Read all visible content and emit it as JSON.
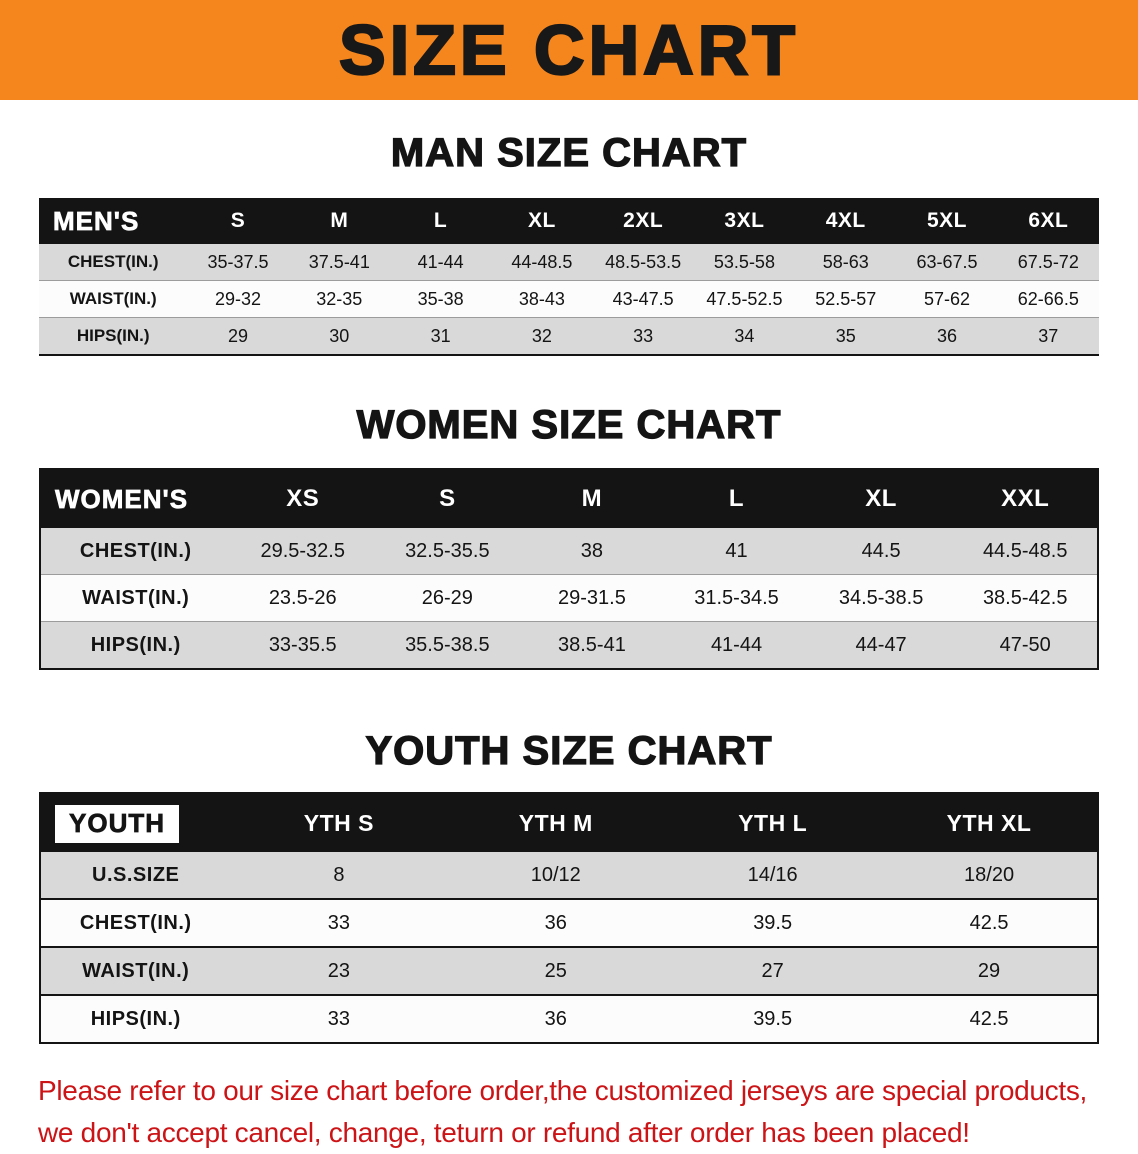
{
  "banner": {
    "title": "SIZE CHART"
  },
  "sections": [
    {
      "id": "men",
      "heading": "MAN SIZE CHART",
      "corner": "MEN'S",
      "sizes": [
        "S",
        "M",
        "L",
        "XL",
        "2XL",
        "3XL",
        "4XL",
        "5XL",
        "6XL"
      ],
      "rows": [
        {
          "label": "CHEST(IN.)",
          "values": [
            "35-37.5",
            "37.5-41",
            "41-44",
            "44-48.5",
            "48.5-53.5",
            "53.5-58",
            "58-63",
            "63-67.5",
            "67.5-72"
          ]
        },
        {
          "label": "WAIST(IN.)",
          "values": [
            "29-32",
            "32-35",
            "35-38",
            "38-43",
            "43-47.5",
            "47.5-52.5",
            "52.5-57",
            "57-62",
            "62-66.5"
          ]
        },
        {
          "label": "HIPS(IN.)",
          "values": [
            "29",
            "30",
            "31",
            "32",
            "33",
            "34",
            "35",
            "36",
            "37"
          ]
        }
      ]
    },
    {
      "id": "women",
      "heading": "WOMEN SIZE CHART",
      "corner": "WOMEN'S",
      "sizes": [
        "XS",
        "S",
        "M",
        "L",
        "XL",
        "XXL"
      ],
      "rows": [
        {
          "label": "CHEST(IN.)",
          "values": [
            "29.5-32.5",
            "32.5-35.5",
            "38",
            "41",
            "44.5",
            "44.5-48.5"
          ]
        },
        {
          "label": "WAIST(IN.)",
          "values": [
            "23.5-26",
            "26-29",
            "29-31.5",
            "31.5-34.5",
            "34.5-38.5",
            "38.5-42.5"
          ]
        },
        {
          "label": "HIPS(IN.)",
          "values": [
            "33-35.5",
            "35.5-38.5",
            "38.5-41",
            "41-44",
            "44-47",
            "47-50"
          ]
        }
      ]
    },
    {
      "id": "youth",
      "heading": "YOUTH SIZE CHART",
      "corner": "YOUTH",
      "sizes": [
        "YTH S",
        "YTH M",
        "YTH L",
        "YTH XL"
      ],
      "rows": [
        {
          "label": "U.S.SIZE",
          "values": [
            "8",
            "10/12",
            "14/16",
            "18/20"
          ]
        },
        {
          "label": "CHEST(IN.)",
          "values": [
            "33",
            "36",
            "39.5",
            "42.5"
          ]
        },
        {
          "label": "WAIST(IN.)",
          "values": [
            "23",
            "25",
            "27",
            "29"
          ]
        },
        {
          "label": "HIPS(IN.)",
          "values": [
            "33",
            "36",
            "39.5",
            "42.5"
          ]
        }
      ]
    }
  ],
  "footer": {
    "line1": "Please refer to our size chart before order,the customized jerseys are special products,",
    "line2": "we don't accept cancel, change, teturn or refund after order has been placed!"
  },
  "colors": {
    "banner_bg": "#f5861e",
    "header_bg": "#141414",
    "row_alt_bg": "#d9d9d9",
    "footer_text": "#cc1417"
  }
}
